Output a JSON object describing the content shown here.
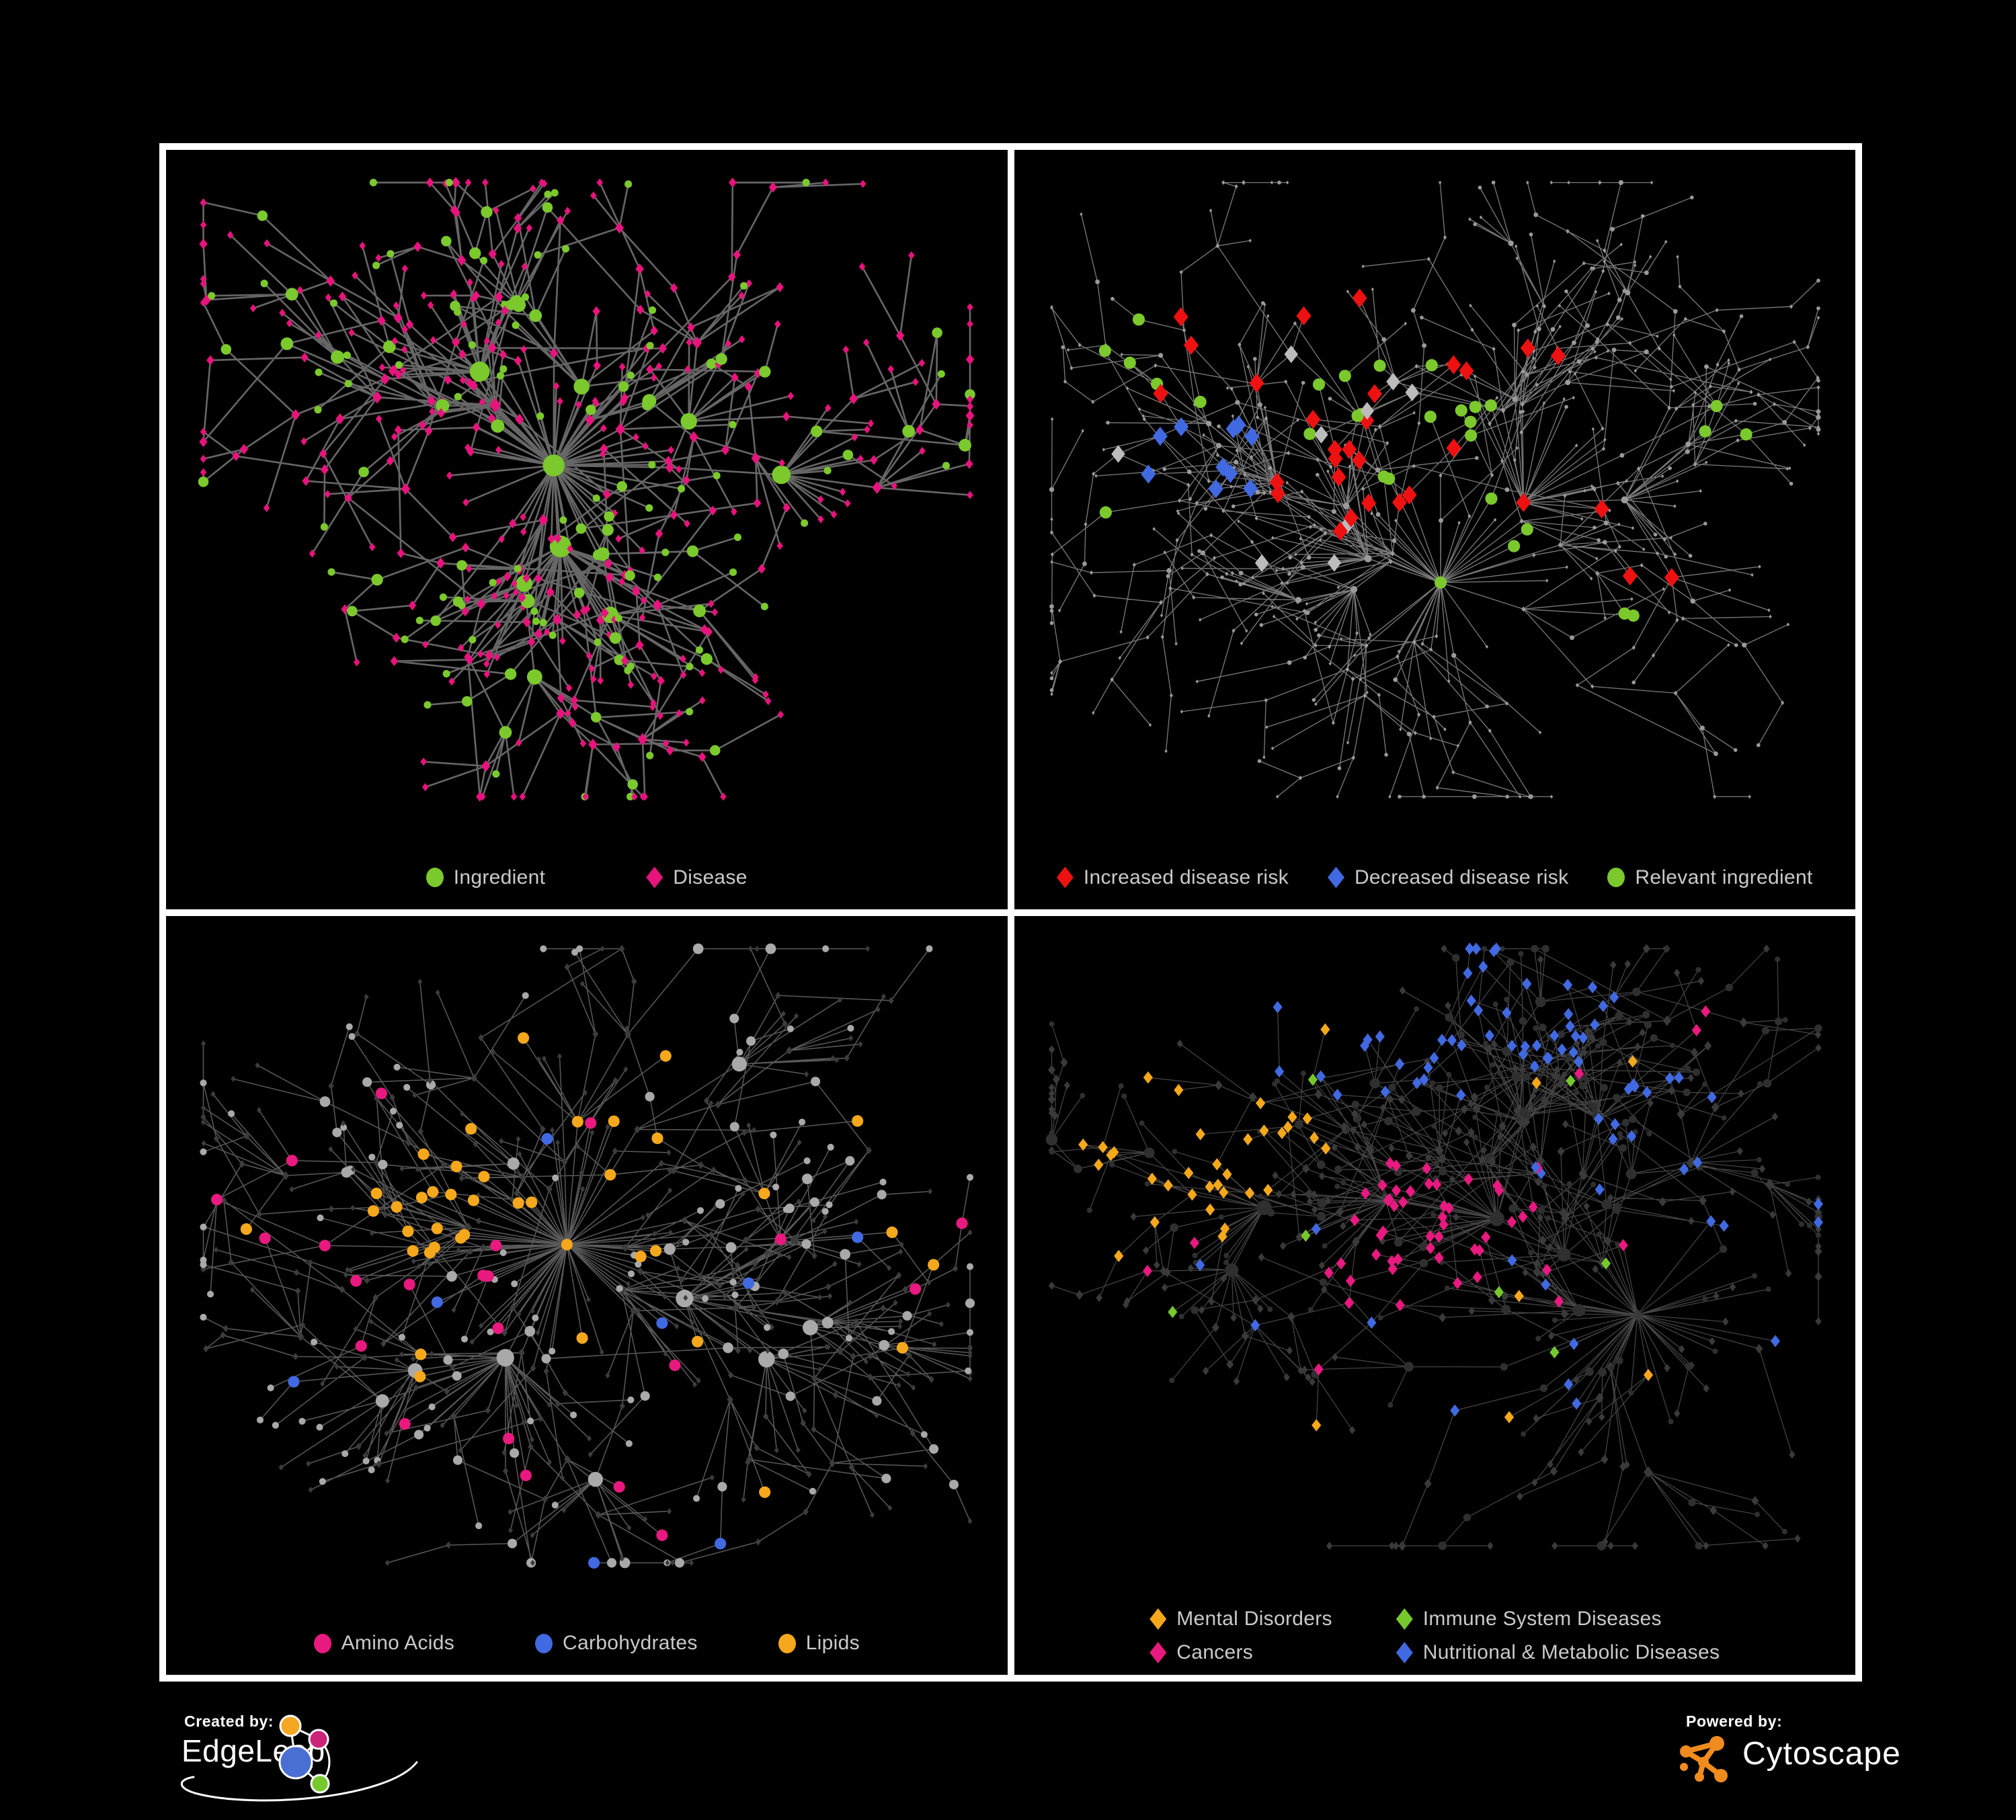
{
  "page": {
    "background": "#000000",
    "panel_border": "#ffffff",
    "legend_text_color": "#cacaca"
  },
  "panels": [
    {
      "id": "ingredient-disease-network",
      "legend": {
        "layout": "row",
        "gap": 150,
        "items": [
          {
            "label": "Ingredient",
            "shape": "circle",
            "color": "#7bc92c"
          },
          {
            "label": "Disease",
            "shape": "diamond",
            "color": "#e8137d"
          }
        ]
      },
      "net": {
        "seed": 11,
        "nodes": 500,
        "chain": 0.15,
        "extra": 55,
        "step": 150,
        "decay": 0.93,
        "spread": 2.4,
        "bottomPad": 165,
        "edge": {
          "color": "#6b6b6b",
          "width": 2.6,
          "opacity": 0.95
        },
        "base": {
          "circleFrac": 0.3,
          "hubBoost": 0.4,
          "circle": {
            "color": "#7bc92c",
            "rmin": 5.5,
            "grow": 2.2,
            "rmax": 16
          },
          "diamond": {
            "color": "#e8137d",
            "r": 6.0,
            "grow": 1.3,
            "rmax": 11
          }
        },
        "groups": []
      }
    },
    {
      "id": "disease-risk-network",
      "legend": {
        "layout": "row",
        "gap": 58,
        "items": [
          {
            "label": "Increased disease risk",
            "shape": "diamond",
            "color": "#ee1111"
          },
          {
            "label": "Decreased disease risk",
            "shape": "diamond",
            "color": "#4169e1"
          },
          {
            "label": "Relevant ingredient",
            "shape": "circle",
            "color": "#7bc92c"
          }
        ]
      },
      "net": {
        "seed": 23,
        "nodes": 620,
        "chain": 0.28,
        "extra": 30,
        "step": 150,
        "decay": 0.93,
        "spread": 2.5,
        "bottomPad": 165,
        "edge": {
          "color": "#8f8f8f",
          "width": 1.3,
          "opacity": 0.85
        },
        "base": {
          "circleFrac": 0.3,
          "hubBoost": 0.3,
          "circle": {
            "color": "#9a9a9a",
            "rmin": 2.8,
            "grow": 0.6,
            "rmax": 5.5
          },
          "diamond": {
            "color": "#9a9a9a",
            "r": 2.8,
            "grow": 0.5,
            "rmax": 5
          }
        },
        "groups": [
          {
            "name": "increased-risk",
            "shape": "diamond",
            "color": "#ee1111",
            "size": 14,
            "count": 30,
            "centers": [
              [
                0.4,
                0.34,
                0.2
              ],
              [
                0.22,
                0.3,
                0.1
              ],
              [
                0.58,
                0.5,
                0.15
              ],
              [
                0.78,
                0.6,
                0.09
              ],
              [
                0.45,
                0.62,
                0.1
              ],
              [
                0.62,
                0.3,
                0.08
              ]
            ]
          },
          {
            "name": "decreased-risk",
            "shape": "diamond",
            "color": "#4169e1",
            "size": 14,
            "count": 10,
            "centers": [
              [
                0.21,
                0.44,
                0.1
              ],
              [
                0.86,
                0.16,
                0.06
              ]
            ]
          },
          {
            "name": "unchanged-risk",
            "shape": "diamond",
            "color": "#bcbcbc",
            "size": 13,
            "count": 9,
            "centers": [
              [
                0.3,
                0.42,
                0.22
              ],
              [
                0.55,
                0.58,
                0.18
              ]
            ]
          },
          {
            "name": "relevant-ingredient",
            "shape": "circle",
            "color": "#7bc92c",
            "size": 9,
            "count": 30,
            "centers": [
              [
                0.44,
                0.4,
                0.15
              ],
              [
                0.14,
                0.3,
                0.1
              ],
              [
                0.56,
                0.58,
                0.1
              ],
              [
                0.12,
                0.55,
                0.06
              ],
              [
                0.78,
                0.72,
                0.05
              ],
              [
                0.88,
                0.4,
                0.04
              ]
            ]
          }
        ]
      }
    },
    {
      "id": "nutrient-class-network",
      "legend": {
        "layout": "row",
        "gap": 120,
        "items": [
          {
            "label": "Amino Acids",
            "shape": "circle",
            "color": "#e8197f"
          },
          {
            "label": "Carbohydrates",
            "shape": "circle",
            "color": "#4169e1"
          },
          {
            "label": "Lipids",
            "shape": "circle",
            "color": "#f5a81c"
          }
        ]
      },
      "net": {
        "seed": 37,
        "nodes": 560,
        "chain": 0.18,
        "extra": 35,
        "step": 150,
        "decay": 0.93,
        "spread": 2.5,
        "bottomPad": 165,
        "edge": {
          "color": "#a3a3a3",
          "width": 1.5,
          "opacity": 0.55
        },
        "base": {
          "circleFrac": 0.34,
          "hubBoost": 0.4,
          "circle": {
            "color": "#a9a9a9",
            "rmin": 5.0,
            "grow": 2.0,
            "rmax": 13
          },
          "diamond": {
            "color": "#3c3c3c",
            "r": 4.5,
            "grow": 0.8,
            "rmax": 8
          }
        },
        "groups": [
          {
            "name": "lipids",
            "baseShape": "circle",
            "shape": "circle",
            "color": "#f5a81c",
            "size": 8.5,
            "count": 60,
            "centers": [
              [
                0.4,
                0.2,
                0.1
              ],
              [
                0.34,
                0.3,
                0.08
              ],
              [
                0.3,
                0.42,
                0.08
              ],
              [
                0.47,
                0.45,
                0.07
              ],
              [
                0.56,
                0.3,
                0.05
              ]
            ]
          },
          {
            "name": "lipids-scattered",
            "baseShape": "circle",
            "shape": "circle",
            "color": "#f5a81c",
            "size": 8.5,
            "count": 16,
            "centers": [
              [
                0.5,
                0.52,
                0.48
              ]
            ]
          },
          {
            "name": "carbohydrates",
            "baseShape": "circle",
            "shape": "circle",
            "color": "#4169e1",
            "size": 8.5,
            "count": 14,
            "centers": [
              [
                0.44,
                0.22,
                0.07
              ],
              [
                0.4,
                0.3,
                0.05
              ]
            ]
          },
          {
            "name": "carbohydrates-scattered",
            "baseShape": "circle",
            "shape": "circle",
            "color": "#4169e1",
            "size": 8.5,
            "count": 7,
            "centers": [
              [
                0.55,
                0.6,
                0.45
              ]
            ]
          },
          {
            "name": "amino-acids",
            "baseShape": "circle",
            "shape": "circle",
            "color": "#e8197f",
            "size": 8.5,
            "count": 9,
            "centers": [
              [
                0.1,
                0.38,
                0.1
              ],
              [
                0.3,
                0.6,
                0.12
              ]
            ]
          },
          {
            "name": "amino-acids-scattered",
            "baseShape": "circle",
            "shape": "circle",
            "color": "#e8197f",
            "size": 8.5,
            "count": 13,
            "centers": [
              [
                0.55,
                0.5,
                0.5
              ]
            ]
          }
        ]
      }
    },
    {
      "id": "disease-class-network",
      "legend": {
        "layout": "grid2",
        "colGap": 95,
        "rowGap": 16,
        "items": [
          {
            "label": "Mental Disorders",
            "shape": "diamond",
            "color": "#f5a81c"
          },
          {
            "label": "Immune System Diseases",
            "shape": "diamond",
            "color": "#76c82d"
          },
          {
            "label": "Cancers",
            "shape": "diamond",
            "color": "#e8197f"
          },
          {
            "label": "Nutritional & Metabolic Diseases",
            "shape": "diamond",
            "color": "#4169e1"
          }
        ]
      },
      "net": {
        "seed": 49,
        "nodes": 620,
        "chain": 0.18,
        "extra": 40,
        "step": 150,
        "decay": 0.93,
        "spread": 2.5,
        "bottomPad": 190,
        "edge": {
          "color": "#808080",
          "width": 1.2,
          "opacity": 0.55
        },
        "base": {
          "circleFrac": 0.3,
          "hubBoost": 0.4,
          "circle": {
            "color": "#2f2f2f",
            "rmin": 4.0,
            "grow": 1.6,
            "rmax": 11
          },
          "diamond": {
            "color": "#3a3a3a",
            "r": 6.0,
            "grow": 1.0,
            "rmax": 9
          }
        },
        "groups": [
          {
            "name": "immune-system-diseases",
            "baseShape": "diamond",
            "shape": "diamond",
            "color": "#76c82d",
            "size": 9,
            "count": 7,
            "centers": [
              [
                0.45,
                0.45,
                0.35
              ]
            ]
          },
          {
            "name": "mental-disorders",
            "baseShape": "diamond",
            "shape": "diamond",
            "color": "#f5a81c",
            "size": 9,
            "count": 90,
            "centers": [
              [
                0.15,
                0.33,
                0.12
              ],
              [
                0.1,
                0.24,
                0.07
              ],
              [
                0.22,
                0.42,
                0.07
              ],
              [
                0.3,
                0.3,
                0.05
              ]
            ]
          },
          {
            "name": "mental-disorders-scattered",
            "baseShape": "diamond",
            "shape": "diamond",
            "color": "#f5a81c",
            "size": 9,
            "count": 10,
            "centers": [
              [
                0.45,
                0.5,
                0.45
              ]
            ]
          },
          {
            "name": "cancers",
            "baseShape": "diamond",
            "shape": "diamond",
            "color": "#e8197f",
            "size": 9,
            "count": 55,
            "centers": [
              [
                0.45,
                0.42,
                0.07
              ],
              [
                0.52,
                0.52,
                0.07
              ],
              [
                0.42,
                0.55,
                0.06
              ],
              [
                0.58,
                0.42,
                0.05
              ],
              [
                0.86,
                0.12,
                0.04
              ]
            ]
          },
          {
            "name": "cancers-scattered",
            "baseShape": "diamond",
            "shape": "diamond",
            "color": "#e8197f",
            "size": 9,
            "count": 8,
            "centers": [
              [
                0.5,
                0.6,
                0.45
              ]
            ]
          },
          {
            "name": "nutritional-metabolic",
            "baseShape": "diamond",
            "shape": "diamond",
            "color": "#4169e1",
            "size": 9,
            "count": 65,
            "centers": [
              [
                0.6,
                0.55,
                0.06
              ],
              [
                0.7,
                0.7,
                0.07
              ],
              [
                0.8,
                0.3,
                0.09
              ],
              [
                0.66,
                0.12,
                0.08
              ],
              [
                0.88,
                0.48,
                0.05
              ],
              [
                0.18,
                0.7,
                0.05
              ],
              [
                0.4,
                0.05,
                0.2
              ]
            ]
          },
          {
            "name": "nutritional-metabolic-scattered",
            "baseShape": "diamond",
            "shape": "diamond",
            "color": "#4169e1",
            "size": 9,
            "count": 14,
            "centers": [
              [
                0.55,
                0.45,
                0.5
              ]
            ]
          }
        ]
      }
    }
  ],
  "footer": {
    "created_by": {
      "label": "Created by:",
      "brand": "EdgeLeap",
      "logo_colors": {
        "orange": "#f5a623",
        "pink": "#cc2277",
        "blue": "#4a6fd4",
        "green": "#76c82d",
        "outline": "#ffffff"
      }
    },
    "powered_by": {
      "label": "Powered by:",
      "brand": "Cytoscape",
      "icon_color": "#f08c1e"
    }
  }
}
